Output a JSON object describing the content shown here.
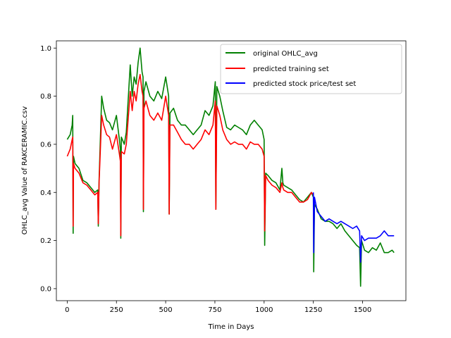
{
  "chart_data": {
    "type": "line",
    "xlabel": "Time in Days",
    "ylabel": "OHLC_avg Value of RAKCERAMIC.csv",
    "xlim": [
      -55,
      1720
    ],
    "ylim": [
      -0.05,
      1.03
    ],
    "xticks": [
      0,
      250,
      500,
      750,
      1000,
      1250,
      1500
    ],
    "yticks": [
      0.0,
      0.2,
      0.4,
      0.6,
      0.8,
      1.0
    ],
    "ytick_labels": [
      "0.0",
      "0.2",
      "0.4",
      "0.6",
      "0.8",
      "1.0"
    ],
    "grid": false,
    "legend_position": "top-right",
    "series": [
      {
        "name": "original OHLC_avg",
        "color": "#008000",
        "x": [
          0,
          15,
          25,
          28,
          30,
          32,
          40,
          60,
          80,
          100,
          120,
          140,
          155,
          158,
          162,
          175,
          185,
          200,
          215,
          230,
          250,
          265,
          270,
          272,
          275,
          290,
          300,
          320,
          330,
          340,
          350,
          360,
          370,
          380,
          385,
          387,
          390,
          400,
          420,
          440,
          460,
          480,
          500,
          515,
          518,
          522,
          540,
          560,
          580,
          600,
          620,
          640,
          660,
          680,
          700,
          720,
          740,
          752,
          755,
          760,
          775,
          790,
          810,
          830,
          850,
          870,
          890,
          910,
          930,
          950,
          970,
          990,
          1000,
          1003,
          1008,
          1020,
          1040,
          1060,
          1080,
          1090,
          1095,
          1100,
          1120,
          1140,
          1160,
          1180,
          1200,
          1220,
          1240,
          1250,
          1252,
          1256,
          1270,
          1290,
          1310,
          1330,
          1350,
          1370,
          1390,
          1410,
          1430,
          1450,
          1470,
          1485,
          1490,
          1495,
          1510,
          1530,
          1550,
          1570,
          1590,
          1610,
          1630,
          1650,
          1660
        ],
        "y": [
          0.62,
          0.64,
          0.68,
          0.72,
          0.23,
          0.55,
          0.52,
          0.5,
          0.45,
          0.44,
          0.42,
          0.4,
          0.41,
          0.26,
          0.45,
          0.8,
          0.75,
          0.7,
          0.69,
          0.66,
          0.72,
          0.62,
          0.58,
          0.21,
          0.63,
          0.6,
          0.65,
          0.93,
          0.8,
          0.88,
          0.85,
          0.94,
          1.0,
          0.9,
          0.88,
          0.32,
          0.82,
          0.86,
          0.8,
          0.78,
          0.82,
          0.79,
          0.88,
          0.8,
          0.31,
          0.73,
          0.75,
          0.7,
          0.68,
          0.68,
          0.66,
          0.64,
          0.66,
          0.68,
          0.74,
          0.72,
          0.76,
          0.86,
          0.33,
          0.84,
          0.8,
          0.74,
          0.67,
          0.66,
          0.68,
          0.67,
          0.66,
          0.64,
          0.68,
          0.7,
          0.68,
          0.66,
          0.62,
          0.18,
          0.48,
          0.47,
          0.45,
          0.44,
          0.41,
          0.5,
          0.44,
          0.43,
          0.42,
          0.41,
          0.39,
          0.37,
          0.36,
          0.38,
          0.4,
          0.38,
          0.07,
          0.35,
          0.33,
          0.29,
          0.28,
          0.28,
          0.27,
          0.25,
          0.27,
          0.24,
          0.22,
          0.2,
          0.18,
          0.17,
          0.01,
          0.2,
          0.16,
          0.15,
          0.17,
          0.16,
          0.19,
          0.15,
          0.15,
          0.16,
          0.15
        ]
      },
      {
        "name": "predicted training set",
        "color": "#ff0000",
        "x": [
          0,
          15,
          25,
          28,
          30,
          32,
          40,
          60,
          80,
          100,
          120,
          140,
          155,
          158,
          162,
          175,
          185,
          200,
          215,
          230,
          250,
          265,
          270,
          272,
          275,
          290,
          300,
          320,
          330,
          340,
          350,
          360,
          370,
          380,
          385,
          387,
          390,
          400,
          420,
          440,
          460,
          480,
          500,
          515,
          518,
          522,
          540,
          560,
          580,
          600,
          620,
          640,
          660,
          680,
          700,
          720,
          740,
          752,
          755,
          760,
          775,
          790,
          810,
          830,
          850,
          870,
          890,
          910,
          930,
          950,
          970,
          990,
          1000,
          1003,
          1008,
          1020,
          1040,
          1060,
          1080,
          1090,
          1095,
          1100,
          1120,
          1140,
          1160,
          1180,
          1200,
          1220,
          1240,
          1250
        ],
        "y": [
          0.55,
          0.58,
          0.62,
          0.63,
          0.26,
          0.52,
          0.5,
          0.48,
          0.44,
          0.43,
          0.41,
          0.39,
          0.4,
          0.27,
          0.44,
          0.72,
          0.68,
          0.64,
          0.63,
          0.58,
          0.64,
          0.56,
          0.53,
          0.22,
          0.57,
          0.56,
          0.6,
          0.82,
          0.74,
          0.82,
          0.78,
          0.85,
          0.89,
          0.82,
          0.8,
          0.33,
          0.75,
          0.78,
          0.72,
          0.7,
          0.73,
          0.7,
          0.8,
          0.72,
          0.31,
          0.68,
          0.68,
          0.65,
          0.62,
          0.6,
          0.6,
          0.58,
          0.6,
          0.62,
          0.66,
          0.64,
          0.68,
          0.78,
          0.33,
          0.76,
          0.72,
          0.66,
          0.62,
          0.6,
          0.61,
          0.6,
          0.6,
          0.58,
          0.61,
          0.6,
          0.6,
          0.58,
          0.55,
          0.24,
          0.47,
          0.45,
          0.43,
          0.42,
          0.4,
          0.44,
          0.42,
          0.41,
          0.4,
          0.4,
          0.38,
          0.36,
          0.36,
          0.37,
          0.4,
          0.39
        ]
      },
      {
        "name": "predicted stock price/test set",
        "color": "#0000ff",
        "x": [
          1250,
          1252,
          1256,
          1270,
          1290,
          1310,
          1330,
          1350,
          1370,
          1390,
          1410,
          1430,
          1450,
          1470,
          1485,
          1490,
          1495,
          1510,
          1530,
          1550,
          1570,
          1590,
          1610,
          1630,
          1650,
          1660
        ],
        "y": [
          0.4,
          0.15,
          0.38,
          0.32,
          0.3,
          0.28,
          0.29,
          0.28,
          0.27,
          0.28,
          0.27,
          0.26,
          0.25,
          0.26,
          0.24,
          0.11,
          0.22,
          0.2,
          0.21,
          0.21,
          0.21,
          0.22,
          0.24,
          0.22,
          0.22,
          0.22
        ]
      }
    ]
  }
}
